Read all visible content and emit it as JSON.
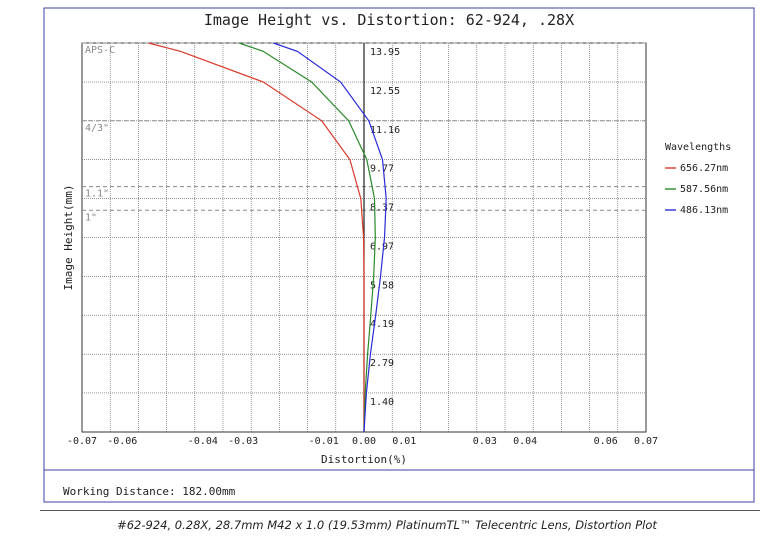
{
  "chart_data": {
    "type": "line",
    "title": "Image Height vs. Distortion: 62-924, .28X",
    "xlabel": "Distortion(%)",
    "ylabel": "Image Height(mm)",
    "xlim": [
      -0.07,
      0.07
    ],
    "ylim": [
      0,
      13.95
    ],
    "x_ticks": [
      -0.07,
      -0.06,
      -0.04,
      -0.03,
      -0.01,
      0.0,
      0.01,
      0.03,
      0.04,
      0.06,
      0.07
    ],
    "x_tick_labels": [
      "-0.07",
      "-0.06",
      "-0.04",
      "-0.03",
      "-0.01",
      "0.00",
      "0.01",
      "0.03",
      "0.04",
      "0.06",
      "0.07"
    ],
    "y_ticks": [
      1.4,
      2.79,
      4.19,
      5.58,
      6.97,
      8.37,
      9.77,
      11.16,
      12.55,
      13.95
    ],
    "y_tick_labels": [
      "1.40",
      "2.79",
      "4.19",
      "5.58",
      "6.97",
      "8.37",
      "9.77",
      "11.16",
      "12.55",
      "13.95"
    ],
    "grid": true,
    "legend_title": "Wavelengths",
    "legend_position": "right",
    "sensor_lines": [
      {
        "label": "APS-C",
        "y": 13.95
      },
      {
        "label": "4/3\"",
        "y": 11.16
      },
      {
        "label": "1.1\"",
        "y": 8.8
      },
      {
        "label": "1\"",
        "y": 7.95
      }
    ],
    "series": [
      {
        "name": "656.27nm",
        "color": "#d93a2b",
        "points": [
          [
            0.0,
            0.0
          ],
          [
            0.0,
            1.4
          ],
          [
            0.0,
            2.79
          ],
          [
            0.0,
            4.19
          ],
          [
            0.0,
            5.58
          ],
          [
            -0.0001,
            6.97
          ],
          [
            -0.0008,
            8.37
          ],
          [
            -0.0035,
            9.77
          ],
          [
            -0.0105,
            11.16
          ],
          [
            -0.025,
            12.55
          ],
          [
            -0.0455,
            13.65
          ],
          [
            -0.0535,
            13.95
          ]
        ]
      },
      {
        "name": "587.56nm",
        "color": "#2a8a2a",
        "points": [
          [
            0.0,
            0.0
          ],
          [
            0.0003,
            1.4
          ],
          [
            0.0009,
            2.79
          ],
          [
            0.0017,
            4.19
          ],
          [
            0.0024,
            5.58
          ],
          [
            0.0028,
            6.97
          ],
          [
            0.0026,
            8.37
          ],
          [
            0.0007,
            9.77
          ],
          [
            -0.0038,
            11.16
          ],
          [
            -0.013,
            12.55
          ],
          [
            -0.025,
            13.65
          ],
          [
            -0.031,
            13.95
          ]
        ]
      },
      {
        "name": "486.13nm",
        "color": "#2b2bd8",
        "points": [
          [
            0.0,
            0.0
          ],
          [
            0.0006,
            1.4
          ],
          [
            0.0016,
            2.79
          ],
          [
            0.0029,
            4.19
          ],
          [
            0.0041,
            5.58
          ],
          [
            0.0051,
            6.97
          ],
          [
            0.0055,
            8.37
          ],
          [
            0.0046,
            9.77
          ],
          [
            0.0012,
            11.16
          ],
          [
            -0.0058,
            12.55
          ],
          [
            -0.0165,
            13.65
          ],
          [
            -0.0225,
            13.95
          ]
        ]
      }
    ]
  },
  "footer": {
    "working_distance": "Working Distance: 182.00mm"
  },
  "caption": "#62-924, 0.28X, 28.7mm M42 x 1.0 (19.53mm) PlatinumTL™ Telecentric Lens, Distortion Plot"
}
